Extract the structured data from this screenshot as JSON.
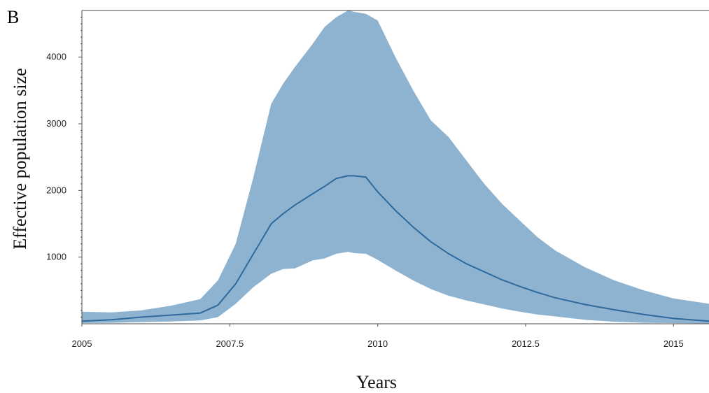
{
  "panel_label": "B",
  "chart_data": {
    "type": "area",
    "xlabel": "Years",
    "ylabel": "Effective population size",
    "xlim": [
      2005,
      2015.6
    ],
    "ylim": [
      0,
      4700
    ],
    "x_ticks": [
      2005,
      2007.5,
      2010,
      2012.5,
      2015
    ],
    "x_tick_labels": [
      "2005",
      "2007.5",
      "2010",
      "2012.5",
      "2015"
    ],
    "y_ticks": [
      1000,
      2000,
      3000,
      4000
    ],
    "y_tick_labels": [
      "1000",
      "2000",
      "3000",
      "4000"
    ],
    "grid": false,
    "colors": {
      "band": "#8db3d0",
      "median": "#2f6a9c"
    },
    "series": [
      {
        "role": "upper",
        "x": [
          2005,
          2005.5,
          2006,
          2006.5,
          2007,
          2007.3,
          2007.6,
          2007.9,
          2008.2,
          2008.4,
          2008.6,
          2008.9,
          2009.1,
          2009.3,
          2009.5,
          2009.6,
          2009.8,
          2010,
          2010.3,
          2010.6,
          2010.9,
          2011.2,
          2011.5,
          2011.8,
          2012.1,
          2012.4,
          2012.7,
          2013,
          2013.5,
          2014,
          2014.5,
          2015,
          2015.6
        ],
        "y": [
          180,
          170,
          200,
          270,
          370,
          650,
          1200,
          2200,
          3300,
          3600,
          3850,
          4200,
          4450,
          4600,
          4700,
          4680,
          4650,
          4550,
          4000,
          3500,
          3050,
          2800,
          2450,
          2100,
          1800,
          1550,
          1300,
          1100,
          850,
          650,
          500,
          380,
          300
        ]
      },
      {
        "role": "median",
        "x": [
          2005,
          2005.5,
          2006,
          2006.5,
          2007,
          2007.3,
          2007.6,
          2007.9,
          2008.2,
          2008.4,
          2008.6,
          2008.9,
          2009.1,
          2009.3,
          2009.5,
          2009.6,
          2009.8,
          2010,
          2010.3,
          2010.6,
          2010.9,
          2011.2,
          2011.5,
          2011.8,
          2012.1,
          2012.4,
          2012.7,
          2013,
          2013.5,
          2014,
          2014.5,
          2015,
          2015.6
        ],
        "y": [
          40,
          60,
          100,
          130,
          160,
          280,
          600,
          1050,
          1500,
          1650,
          1780,
          1950,
          2060,
          2180,
          2220,
          2220,
          2200,
          1980,
          1700,
          1450,
          1230,
          1050,
          900,
          780,
          660,
          560,
          470,
          390,
          290,
          210,
          140,
          80,
          40
        ]
      },
      {
        "role": "lower",
        "x": [
          2005,
          2005.5,
          2006,
          2006.5,
          2007,
          2007.3,
          2007.6,
          2007.9,
          2008.2,
          2008.4,
          2008.6,
          2008.9,
          2009.1,
          2009.3,
          2009.5,
          2009.6,
          2009.8,
          2010,
          2010.3,
          2010.6,
          2010.9,
          2011.2,
          2011.5,
          2011.8,
          2012.1,
          2012.4,
          2012.7,
          2013,
          2013.5,
          2014,
          2014.5,
          2015,
          2015.6
        ],
        "y": [
          10,
          15,
          25,
          35,
          50,
          100,
          300,
          550,
          750,
          820,
          830,
          950,
          980,
          1050,
          1080,
          1060,
          1050,
          960,
          800,
          650,
          520,
          420,
          350,
          290,
          230,
          180,
          140,
          110,
          60,
          30,
          15,
          10,
          5
        ]
      }
    ]
  }
}
